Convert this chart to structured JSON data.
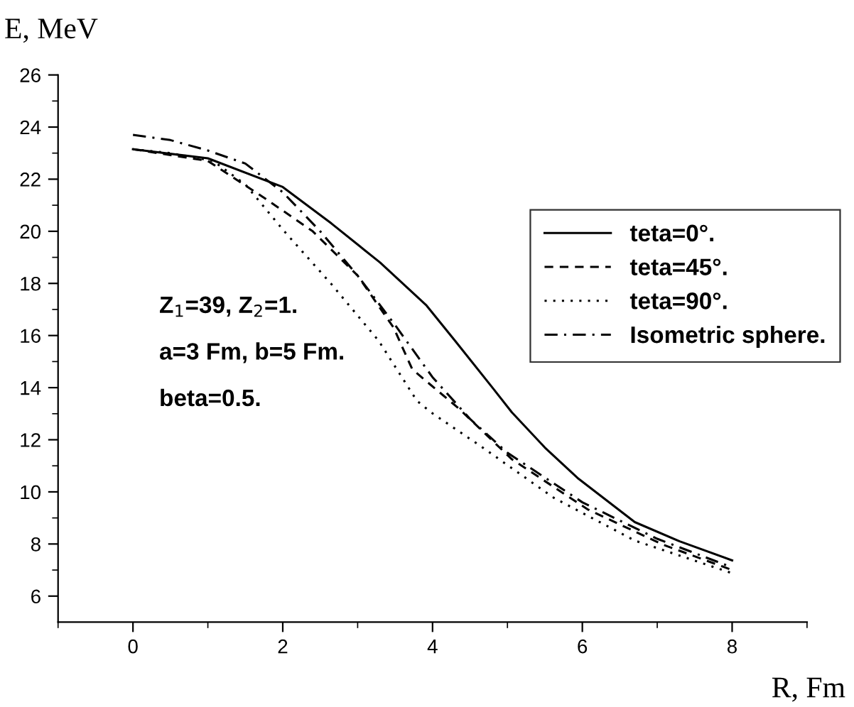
{
  "chart_data": {
    "type": "line",
    "xlabel": "R, Fm",
    "ylabel": "E, MeV",
    "xlim": [
      -1,
      9
    ],
    "xticks": [
      0,
      2,
      4,
      6,
      8
    ],
    "ylim": [
      5,
      26
    ],
    "yticks": [
      6,
      8,
      10,
      12,
      14,
      16,
      18,
      20,
      22,
      24,
      26
    ],
    "grid": false,
    "legend": "top right",
    "marker": "none",
    "series": [
      {
        "name": "teta=0°.",
        "color": "#000000",
        "line_style": "solid",
        "x": [
          0,
          1,
          2,
          2.65,
          3.3,
          3.92,
          4.3,
          4.8,
          5.06,
          5.5,
          5.95,
          6.7,
          7.3,
          8
        ],
        "values": [
          23.15,
          22.8,
          21.7,
          20.3,
          18.8,
          17.15,
          15.8,
          14.0,
          13.05,
          11.7,
          10.5,
          8.84,
          8.1,
          7.37
        ]
      },
      {
        "name": "teta=45°.",
        "color": "#000000",
        "line_style": "dashed",
        "x": [
          0,
          1,
          1.77,
          2.4,
          3.0,
          3.48,
          3.73,
          4.35,
          5.06,
          6.07,
          7.08,
          8
        ],
        "values": [
          23.15,
          22.7,
          21.25,
          20.0,
          18.3,
          16.3,
          14.7,
          13.2,
          11.25,
          9.33,
          7.97,
          7.0
        ]
      },
      {
        "name": "teta=90°.",
        "color": "#000000",
        "line_style": "dotted",
        "x": [
          0,
          0.5,
          1.07,
          1.5,
          2.02,
          2.65,
          3.28,
          3.79,
          3.98,
          4.62,
          5.62,
          6.7,
          8
        ],
        "values": [
          23.15,
          23.0,
          22.7,
          21.8,
          20.0,
          17.97,
          15.8,
          13.5,
          13.05,
          11.8,
          9.77,
          8.13,
          6.88
        ]
      },
      {
        "name": "Isometric sphere.",
        "color": "#000000",
        "line_style": "dashdot",
        "x": [
          0,
          0.5,
          1,
          1.5,
          2.0,
          2.5,
          3.0,
          3.5,
          4.0,
          4.5,
          5.0,
          6.0,
          7.0,
          8
        ],
        "values": [
          23.7,
          23.5,
          23.1,
          22.6,
          21.5,
          20.0,
          18.3,
          16.4,
          14.4,
          12.8,
          11.5,
          9.6,
          8.2,
          7.1
        ]
      }
    ],
    "annotations": [
      "Z$_{1}$=39, Z$_{2}$=1.",
      "a=3 Fm, b=5 Fm.",
      "beta=0.5."
    ]
  }
}
